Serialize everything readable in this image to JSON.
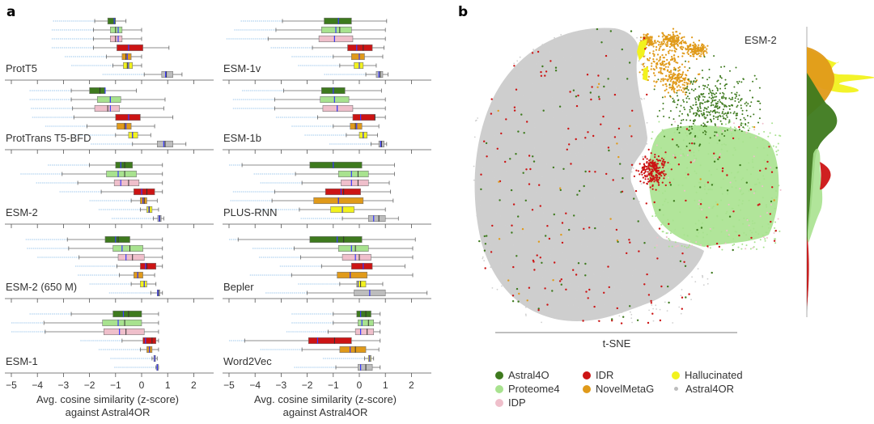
{
  "figure": {
    "panel_a_letter": "a",
    "panel_b_letter": "b"
  },
  "colors": {
    "Astral40": "#3e7a1e",
    "Proteome4": "#a8e28f",
    "IDP": "#efbfcb",
    "IDR": "#cc1414",
    "NovelMetaG": "#e09a1a",
    "Hallucinated": "#f2f21e",
    "Astral40R": "#bdbdbd",
    "mean_line": "#3a3aff",
    "outlier": "#9ec8ec"
  },
  "chart_data": [
    {
      "type": "box",
      "panel": "a",
      "title": "",
      "xlabel": "Avg. cosine similarity (z-score) against Astral4OR",
      "xlabel_line1": "Avg. cosine similarity (z-score)",
      "xlabel_line2": "against Astral4OR",
      "xlim": [
        -5.3,
        2.8
      ],
      "xticks": [
        -5,
        -4,
        -3,
        -2,
        -1,
        0,
        1,
        2
      ],
      "xtick_labels": [
        "−5",
        "−4",
        "−3",
        "−2",
        "−1",
        "0",
        "1",
        "2"
      ],
      "series_order": [
        "Astral40",
        "Proteome4",
        "IDP",
        "IDR",
        "NovelMetaG",
        "Hallucinated",
        "Astral40R"
      ],
      "models": [
        {
          "name": "ProtT5",
          "column": 0,
          "boxes": [
            {
              "group": "Astral40",
              "wlo": -1.8,
              "q1": -1.3,
              "med": -1.05,
              "q3": -1.0,
              "whi": -0.6,
              "mean": -1.05
            },
            {
              "group": "Proteome4",
              "wlo": -1.85,
              "q1": -1.2,
              "med": -1.0,
              "q3": -0.75,
              "whi": 0.0,
              "mean": -0.9
            },
            {
              "group": "IDP",
              "wlo": -1.85,
              "q1": -1.2,
              "med": -1.0,
              "q3": -0.75,
              "whi": 0.0,
              "mean": -0.9
            },
            {
              "group": "IDR",
              "wlo": -1.85,
              "q1": -0.95,
              "med": -0.5,
              "q3": 0.05,
              "whi": 1.05,
              "mean": -0.5
            },
            {
              "group": "NovelMetaG",
              "wlo": -1.35,
              "q1": -0.75,
              "med": -0.6,
              "q3": -0.4,
              "whi": 0.0,
              "mean": -0.55
            },
            {
              "group": "Hallucinated",
              "wlo": -1.1,
              "q1": -0.7,
              "med": -0.55,
              "q3": -0.35,
              "whi": 0.0,
              "mean": -0.5
            },
            {
              "group": "Astral40R",
              "wlo": 0.1,
              "q1": 0.77,
              "med": 0.95,
              "q3": 1.2,
              "whi": 1.55,
              "mean": 0.92
            }
          ]
        },
        {
          "name": "ProtTrans T5-BFD",
          "column": 0,
          "boxes": [
            {
              "group": "Astral40",
              "wlo": -2.7,
              "q1": -2.0,
              "med": -1.6,
              "q3": -1.4,
              "whi": -0.2,
              "mean": -1.4
            },
            {
              "group": "Proteome4",
              "wlo": -2.7,
              "q1": -1.7,
              "med": -1.2,
              "q3": -0.8,
              "whi": 0.9,
              "mean": -1.2
            },
            {
              "group": "IDP",
              "wlo": -2.65,
              "q1": -1.8,
              "med": -1.3,
              "q3": -0.85,
              "whi": 0.85,
              "mean": -1.2
            },
            {
              "group": "IDR",
              "wlo": -2.6,
              "q1": -1.0,
              "med": -0.5,
              "q3": -0.05,
              "whi": 1.2,
              "mean": -0.5
            },
            {
              "group": "NovelMetaG",
              "wlo": -2.1,
              "q1": -0.95,
              "med": -0.65,
              "q3": -0.4,
              "whi": 0.5,
              "mean": -0.6
            },
            {
              "group": "Hallucinated",
              "wlo": -1.0,
              "q1": -0.5,
              "med": -0.35,
              "q3": -0.15,
              "whi": 0.35,
              "mean": -0.35
            },
            {
              "group": "Astral40R",
              "wlo": -0.35,
              "q1": 0.6,
              "med": 0.9,
              "q3": 1.2,
              "whi": 1.7,
              "mean": 0.85
            }
          ]
        },
        {
          "name": "ESM-2",
          "column": 0,
          "boxes": [
            {
              "group": "Astral40",
              "wlo": -2.0,
              "q1": -1.0,
              "med": -0.65,
              "q3": -0.35,
              "whi": 0.8,
              "mean": -0.8
            },
            {
              "group": "Proteome4",
              "wlo": -3.05,
              "q1": -1.35,
              "med": -0.65,
              "q3": -0.2,
              "whi": 0.8,
              "mean": -0.9
            },
            {
              "group": "IDP",
              "wlo": -2.45,
              "q1": -1.05,
              "med": -0.5,
              "q3": -0.1,
              "whi": 0.8,
              "mean": -0.8
            },
            {
              "group": "IDR",
              "wlo": -1.55,
              "q1": -0.3,
              "med": 0.2,
              "q3": 0.5,
              "whi": 0.8,
              "mean": 0.0
            },
            {
              "group": "NovelMetaG",
              "wlo": -0.4,
              "q1": -0.05,
              "med": 0.1,
              "q3": 0.2,
              "whi": 0.6,
              "mean": 0.05
            },
            {
              "group": "Hallucinated",
              "wlo": -0.05,
              "q1": 0.2,
              "med": 0.3,
              "q3": 0.4,
              "whi": 0.65,
              "mean": 0.28
            },
            {
              "group": "Astral40R",
              "wlo": 0.45,
              "q1": 0.62,
              "med": 0.7,
              "q3": 0.75,
              "whi": 0.85,
              "mean": 0.68
            }
          ]
        },
        {
          "name": "ESM-2 (650 M)",
          "column": 0,
          "boxes": [
            {
              "group": "Astral40",
              "wlo": -2.85,
              "q1": -1.4,
              "med": -0.9,
              "q3": -0.45,
              "whi": 0.8,
              "mean": -1.0
            },
            {
              "group": "Proteome4",
              "wlo": -2.8,
              "q1": -1.1,
              "med": -0.45,
              "q3": 0.05,
              "whi": 0.8,
              "mean": -0.75
            },
            {
              "group": "IDP",
              "wlo": -2.4,
              "q1": -0.9,
              "med": -0.35,
              "q3": 0.1,
              "whi": 0.8,
              "mean": -0.6
            },
            {
              "group": "IDR",
              "wlo": -0.95,
              "q1": -0.05,
              "med": 0.2,
              "q3": 0.55,
              "whi": 0.8,
              "mean": 0.15
            },
            {
              "group": "NovelMetaG",
              "wlo": -0.85,
              "q1": -0.3,
              "med": -0.15,
              "q3": 0.05,
              "whi": 0.5,
              "mean": -0.15
            },
            {
              "group": "Hallucinated",
              "wlo": -0.4,
              "q1": -0.05,
              "med": 0.1,
              "q3": 0.2,
              "whi": 0.55,
              "mean": 0.1
            },
            {
              "group": "Astral40R",
              "wlo": 0.35,
              "q1": 0.6,
              "med": 0.65,
              "q3": 0.7,
              "whi": 0.8,
              "mean": 0.62
            }
          ]
        },
        {
          "name": "ESM-1",
          "column": 0,
          "boxes": [
            {
              "group": "Astral40",
              "wlo": -2.7,
              "q1": -1.1,
              "med": -0.5,
              "q3": 0.0,
              "whi": 0.65,
              "mean": -0.7
            },
            {
              "group": "Proteome4",
              "wlo": -3.75,
              "q1": -1.5,
              "med": -0.65,
              "q3": 0.0,
              "whi": 0.65,
              "mean": -0.9
            },
            {
              "group": "IDP",
              "wlo": -3.7,
              "q1": -1.45,
              "med": -0.6,
              "q3": 0.1,
              "whi": 0.65,
              "mean": -0.85
            },
            {
              "group": "IDR",
              "wlo": -0.75,
              "q1": 0.05,
              "med": 0.4,
              "q3": 0.55,
              "whi": 0.65,
              "mean": 0.15
            },
            {
              "group": "NovelMetaG",
              "wlo": -0.05,
              "q1": 0.2,
              "med": 0.3,
              "q3": 0.4,
              "whi": 0.65,
              "mean": 0.3
            },
            {
              "group": "Hallucinated",
              "wlo": 0.4,
              "q1": 0.47,
              "med": 0.5,
              "q3": 0.53,
              "whi": 0.6,
              "mean": 0.5
            },
            {
              "group": "Astral40R",
              "wlo": 0.55,
              "q1": 0.58,
              "med": 0.6,
              "q3": 0.63,
              "whi": 0.65,
              "mean": 0.6
            }
          ]
        },
        {
          "name": "ESM-1v",
          "column": 1,
          "boxes": [
            {
              "group": "Astral40",
              "wlo": -2.95,
              "q1": -1.35,
              "med": -0.8,
              "q3": -0.3,
              "whi": 1.05,
              "mean": -0.8
            },
            {
              "group": "Proteome4",
              "wlo": -3.2,
              "q1": -1.45,
              "med": -0.75,
              "q3": -0.3,
              "whi": 1.0,
              "mean": -0.9
            },
            {
              "group": "IDP",
              "wlo": -3.5,
              "q1": -1.55,
              "med": -0.95,
              "q3": -0.25,
              "whi": 1.0,
              "mean": -0.95
            },
            {
              "group": "IDR",
              "wlo": -1.8,
              "q1": -0.45,
              "med": 0.15,
              "q3": 0.5,
              "whi": 0.95,
              "mean": -0.1
            },
            {
              "group": "NovelMetaG",
              "wlo": -1.0,
              "q1": -0.3,
              "med": 0.0,
              "q3": 0.2,
              "whi": 0.9,
              "mean": 0.0
            },
            {
              "group": "Hallucinated",
              "wlo": -0.75,
              "q1": -0.2,
              "med": 0.0,
              "q3": 0.15,
              "whi": 0.65,
              "mean": 0.0
            },
            {
              "group": "Astral40R",
              "wlo": 0.25,
              "q1": 0.65,
              "med": 0.8,
              "q3": 0.9,
              "whi": 1.1,
              "mean": 0.75
            }
          ]
        },
        {
          "name": "ESM-1b",
          "column": 1,
          "boxes": [
            {
              "group": "Astral40",
              "wlo": -2.9,
              "q1": -1.45,
              "med": -1.0,
              "q3": -0.55,
              "whi": 0.85,
              "mean": -1.0
            },
            {
              "group": "Proteome4",
              "wlo": -3.25,
              "q1": -1.5,
              "med": -0.95,
              "q3": -0.4,
              "whi": 1.0,
              "mean": -0.95
            },
            {
              "group": "IDP",
              "wlo": -3.25,
              "q1": -1.4,
              "med": -0.85,
              "q3": -0.25,
              "whi": 1.0,
              "mean": -0.85
            },
            {
              "group": "IDR",
              "wlo": -1.6,
              "q1": -0.25,
              "med": 0.6,
              "q3": 0.6,
              "whi": 1.0,
              "mean": 0.05
            },
            {
              "group": "NovelMetaG",
              "wlo": -1.0,
              "q1": -0.35,
              "med": -0.15,
              "q3": 0.1,
              "whi": 0.75,
              "mean": -0.1
            },
            {
              "group": "Hallucinated",
              "wlo": -0.5,
              "q1": 0.0,
              "med": 0.15,
              "q3": 0.3,
              "whi": 0.7,
              "mean": 0.15
            },
            {
              "group": "Astral40R",
              "wlo": 0.45,
              "q1": 0.75,
              "med": 0.85,
              "q3": 0.95,
              "whi": 1.05,
              "mean": 0.82
            }
          ]
        },
        {
          "name": "PLUS-RNN",
          "column": 1,
          "boxes": [
            {
              "group": "Astral40",
              "wlo": -4.5,
              "q1": -1.9,
              "med": -1.0,
              "q3": 0.1,
              "whi": 1.35,
              "mean": -1.0
            },
            {
              "group": "Proteome4",
              "wlo": -2.45,
              "q1": -0.8,
              "med": -0.05,
              "q3": 0.35,
              "whi": 1.35,
              "mean": -0.3
            },
            {
              "group": "IDP",
              "wlo": -2.2,
              "q1": -0.7,
              "med": -0.05,
              "q3": 0.35,
              "whi": 1.15,
              "mean": -0.3
            },
            {
              "group": "IDR",
              "wlo": -3.25,
              "q1": -1.3,
              "med": -0.6,
              "q3": 0.05,
              "whi": 1.2,
              "mean": -0.7
            },
            {
              "group": "NovelMetaG",
              "wlo": -3.35,
              "q1": -1.75,
              "med": -0.8,
              "q3": 0.15,
              "whi": 1.3,
              "mean": -0.8
            },
            {
              "group": "Hallucinated",
              "wlo": -2.3,
              "q1": -1.1,
              "med": -0.65,
              "q3": -0.2,
              "whi": 1.0,
              "mean": -0.65
            },
            {
              "group": "Astral40R",
              "wlo": -0.65,
              "q1": 0.35,
              "med": 0.75,
              "q3": 1.0,
              "whi": 1.5,
              "mean": 0.55
            }
          ]
        },
        {
          "name": "Bepler",
          "column": 1,
          "boxes": [
            {
              "group": "Astral40",
              "wlo": -4.65,
              "q1": -1.9,
              "med": -0.6,
              "q3": 0.1,
              "whi": 2.15,
              "mean": -0.85
            },
            {
              "group": "Proteome4",
              "wlo": -2.5,
              "q1": -0.8,
              "med": -0.15,
              "q3": 0.35,
              "whi": 2.05,
              "mean": -0.3
            },
            {
              "group": "IDP",
              "wlo": -2.25,
              "q1": -0.65,
              "med": 0.0,
              "q3": 0.45,
              "whi": 2.05,
              "mean": -0.15
            },
            {
              "group": "IDR",
              "wlo": -1.45,
              "q1": -0.3,
              "med": 0.15,
              "q3": 0.5,
              "whi": 1.75,
              "mean": 0.15
            },
            {
              "group": "NovelMetaG",
              "wlo": -2.6,
              "q1": -0.85,
              "med": -0.35,
              "q3": 0.3,
              "whi": 2.05,
              "mean": -0.35
            },
            {
              "group": "Hallucinated",
              "wlo": -0.75,
              "q1": -0.1,
              "med": 0.05,
              "q3": 0.25,
              "whi": 0.9,
              "mean": -0.05
            },
            {
              "group": "Astral40R",
              "wlo": -2.0,
              "q1": -0.2,
              "med": 0.4,
              "q3": 1.0,
              "whi": 2.6,
              "mean": 0.4
            }
          ]
        },
        {
          "name": "Word2Vec",
          "column": 1,
          "boxes": [
            {
              "group": "Astral40",
              "wlo": -1.0,
              "q1": -0.1,
              "med": 0.25,
              "q3": 0.45,
              "whi": 0.8,
              "mean": 0.05
            },
            {
              "group": "Proteome4",
              "wlo": -1.0,
              "q1": -0.05,
              "med": 0.35,
              "q3": 0.55,
              "whi": 0.8,
              "mean": 0.1
            },
            {
              "group": "IDP",
              "wlo": -1.2,
              "q1": -0.15,
              "med": 0.3,
              "q3": 0.55,
              "whi": 0.8,
              "mean": 0.05
            },
            {
              "group": "IDR",
              "wlo": -4.4,
              "q1": -1.95,
              "med": -0.95,
              "q3": -0.3,
              "whi": 0.8,
              "mean": -1.6
            },
            {
              "group": "NovelMetaG",
              "wlo": -2.2,
              "q1": -0.75,
              "med": -0.15,
              "q3": 0.25,
              "whi": 0.75,
              "mean": -0.35
            },
            {
              "group": "Hallucinated",
              "wlo": 0.2,
              "q1": 0.35,
              "med": 0.4,
              "q3": 0.45,
              "whi": 0.55,
              "mean": 0.4
            },
            {
              "group": "Astral40R",
              "wlo": -0.9,
              "q1": -0.05,
              "med": 0.25,
              "q3": 0.5,
              "whi": 0.8,
              "mean": 0.05
            }
          ]
        }
      ]
    },
    {
      "type": "scatter",
      "panel": "b",
      "title": "ESM-2",
      "xlabel": "t-SNE",
      "ylabel": "",
      "description": "t-SNE embedding of ESM-2 representations with marginal density on the right",
      "clusters": [
        {
          "group": "Astral40R",
          "region": "large left blob (background)"
        },
        {
          "group": "NovelMetaG",
          "region": "top-center"
        },
        {
          "group": "Hallucinated",
          "region": "top-center, narrow streaks"
        },
        {
          "group": "Astral40",
          "region": "upper-right, plus sparse scatter"
        },
        {
          "group": "Proteome4",
          "region": "right lobe"
        },
        {
          "group": "IDR",
          "region": "center-right cluster plus sparse scatter"
        }
      ],
      "marginal_density_order_top_to_bottom": [
        "Hallucinated",
        "NovelMetaG",
        "Astral40",
        "IDR",
        "Proteome4",
        "Astral40R"
      ]
    }
  ],
  "legend": {
    "items": [
      {
        "label": "Astral4O",
        "group": "Astral40"
      },
      {
        "label": "Proteome4",
        "group": "Proteome4"
      },
      {
        "label": "IDP",
        "group": "IDP"
      },
      {
        "label": "IDR",
        "group": "IDR"
      },
      {
        "label": "NovelMetaG",
        "group": "NovelMetaG"
      },
      {
        "label": "Hallucinated",
        "group": "Hallucinated"
      },
      {
        "label": "Astral4OR",
        "group": "Astral40R"
      }
    ]
  }
}
